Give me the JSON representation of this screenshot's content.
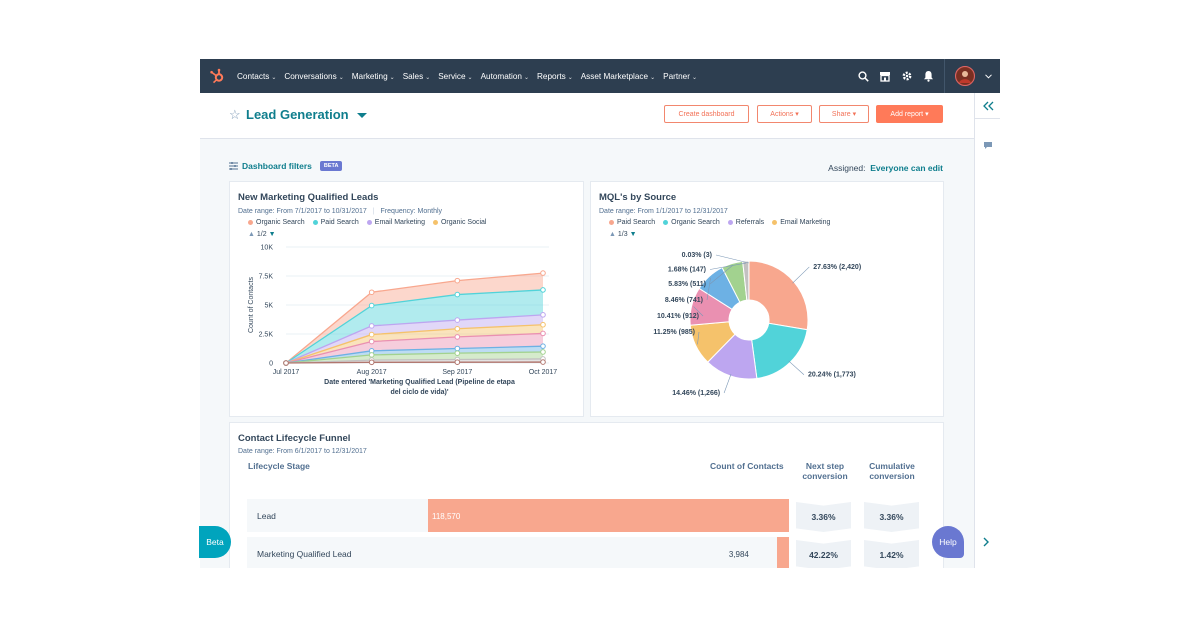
{
  "nav": {
    "items": [
      {
        "label": "Contacts"
      },
      {
        "label": "Conversations"
      },
      {
        "label": "Marketing"
      },
      {
        "label": "Sales"
      },
      {
        "label": "Service"
      },
      {
        "label": "Automation"
      },
      {
        "label": "Reports"
      },
      {
        "label": "Asset Marketplace"
      },
      {
        "label": "Partner"
      }
    ],
    "icons": [
      "search-icon",
      "marketplace-icon",
      "gear-icon",
      "bell-icon",
      "avatar",
      "chevron-down-icon"
    ]
  },
  "header": {
    "title": "Lead Generation",
    "create_dashboard": "Create dashboard",
    "actions": "Actions",
    "share": "Share",
    "add_report": "Add report"
  },
  "filters": {
    "label": "Dashboard filters",
    "beta": "BETA",
    "assigned_label": "Assigned:",
    "assigned_value": "Everyone can edit"
  },
  "mql_card": {
    "title": "New Marketing Qualified Leads",
    "date_range": "Date range: From 7/1/2017 to 10/31/2017",
    "frequency": "Frequency: Monthly",
    "pager": "1/2",
    "chart_data": {
      "type": "area",
      "x": [
        "Jul 2017",
        "Aug 2017",
        "Sep 2017",
        "Oct 2017"
      ],
      "xlabel": "Date entered 'Marketing Qualified Lead (Pipeline de etapa del ciclo de vida)'",
      "ylabel": "Count of Contacts",
      "yticks": [
        "0",
        "2.5K",
        "5K",
        "7.5K",
        "10K"
      ],
      "ylim": [
        0,
        10000
      ],
      "series": [
        {
          "name": "Organic Search",
          "color": "#f8a78e",
          "values": [
            0,
            6100,
            7100,
            7750
          ]
        },
        {
          "name": "Paid Search",
          "color": "#51d3d9",
          "values": [
            0,
            4950,
            5900,
            6300
          ]
        },
        {
          "name": "Email Marketing",
          "color": "#bda6f0",
          "values": [
            0,
            3200,
            3700,
            4150
          ]
        },
        {
          "name": "Organic Social",
          "color": "#f5c26b",
          "values": [
            0,
            2450,
            2950,
            3300
          ]
        },
        {
          "name": "",
          "color": "#ea90b1",
          "values": [
            0,
            1850,
            2250,
            2550
          ]
        },
        {
          "name": "",
          "color": "#6db1e4",
          "values": [
            0,
            1050,
            1250,
            1450
          ]
        },
        {
          "name": "",
          "color": "#a2d28f",
          "values": [
            0,
            700,
            850,
            950
          ]
        },
        {
          "name": "",
          "color": "#c3c1c1",
          "values": [
            0,
            250,
            300,
            350
          ]
        },
        {
          "name": "",
          "color": "#b1766e",
          "values": [
            0,
            60,
            70,
            80
          ]
        }
      ]
    }
  },
  "source_card": {
    "title": "MQL's by Source",
    "date_range": "Date range: From 1/1/2017 to 12/31/2017",
    "pager": "1/3",
    "chart_data": {
      "type": "pie",
      "legend": [
        "Paid Search",
        "Organic Search",
        "Referrals",
        "Email Marketing"
      ],
      "slices": [
        {
          "label": "27.63% (2,420)",
          "percent": 27.63,
          "count": 2420,
          "color": "#f8a78e"
        },
        {
          "label": "20.24% (1,773)",
          "percent": 20.24,
          "count": 1773,
          "color": "#51d3d9"
        },
        {
          "label": "14.46% (1,266)",
          "percent": 14.46,
          "count": 1266,
          "color": "#bda6f0"
        },
        {
          "label": "11.25% (985)",
          "percent": 11.25,
          "count": 985,
          "color": "#f5c26b"
        },
        {
          "label": "10.41% (912)",
          "percent": 10.41,
          "count": 912,
          "color": "#ea90b1"
        },
        {
          "label": "8.46% (741)",
          "percent": 8.46,
          "count": 741,
          "color": "#6db1e4"
        },
        {
          "label": "5.83% (511)",
          "percent": 5.83,
          "count": 511,
          "color": "#a2d28f"
        },
        {
          "label": "1.68% (147)",
          "percent": 1.68,
          "count": 147,
          "color": "#c3c1c1"
        },
        {
          "label": "0.03% (3)",
          "percent": 0.03,
          "count": 3,
          "color": "#b1766e"
        }
      ]
    }
  },
  "funnel": {
    "title": "Contact Lifecycle Funnel",
    "date_range": "Date range: From 6/1/2017 to 12/31/2017",
    "col_stage": "Lifecycle Stage",
    "col_count": "Count of Contacts",
    "col_next_1": "Next step",
    "col_next_2": "conversion",
    "col_cum_1": "Cumulative",
    "col_cum_2": "conversion",
    "rows": [
      {
        "stage": "Lead",
        "count": "118,570",
        "value": 118570,
        "next": "3.36%",
        "cumulative": "3.36%"
      },
      {
        "stage": "Marketing Qualified Lead",
        "count": "3,984",
        "value": 3984,
        "next": "42.22%",
        "cumulative": "1.42%"
      }
    ]
  },
  "floating": {
    "beta": "Beta",
    "help": "Help"
  }
}
